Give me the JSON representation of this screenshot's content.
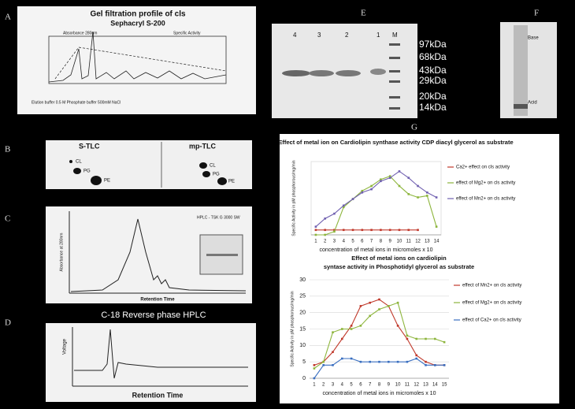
{
  "panels": {
    "A": {
      "label": "A",
      "title": "Gel filtration profile of cls",
      "subtitle": "Sephacryl S-200",
      "y_label": "Absorbance 280nm",
      "y2_label": "Specific Activity",
      "note": "Elution buffer 0.5 M Phosphate buffer 500mM NaCl"
    },
    "B": {
      "label": "B",
      "left": "S-TLC",
      "right": "mp-TLC",
      "spots": [
        "CL",
        "PG",
        "PE"
      ]
    },
    "C": {
      "label": "C",
      "x_label": "Retention Time",
      "y_label": "Absorbance at 280nm",
      "note": "HPLC - TSK G 3000 SW"
    },
    "D": {
      "label": "D",
      "title": "C-18 Reverse phase HPLC",
      "x_label": "Retention Time",
      "y_label": "Voltage"
    },
    "E": {
      "label": "E",
      "lanes": [
        "4",
        "3",
        "2",
        "1",
        "M"
      ],
      "markers": [
        "97kDa",
        "68kDa",
        "43kDa",
        "29kDa",
        "20kDa",
        "14kDa"
      ]
    },
    "F": {
      "label": "F",
      "top": "Base",
      "bottom": "Acid"
    },
    "G": {
      "label": "G"
    }
  },
  "chart_data": [
    {
      "type": "line",
      "title": "Effect of metal ion on Cardiolipin synthase activity CDP diacyl glycerol as substrate",
      "x_label": "concentration of metal ions in micromoles x 10",
      "y_label": "Specific Activity in pM phosphorous/mg/min",
      "categories": [
        "1",
        "2",
        "3",
        "4",
        "5",
        "6",
        "7",
        "8",
        "9",
        "10",
        "11",
        "12",
        "13",
        "14"
      ],
      "ylim": [
        0,
        45
      ],
      "series": [
        {
          "name": "Ca2+ effect on cls activity",
          "color": "#c0392b",
          "values": [
            3,
            3,
            3,
            3,
            3,
            3,
            3,
            3,
            3,
            3,
            3,
            3,
            null,
            null
          ]
        },
        {
          "name": "effect of Mg2+ on cls activity",
          "color": "#8db53c",
          "values": [
            0,
            0,
            2,
            17,
            22,
            27,
            30,
            34,
            36,
            30,
            25,
            23,
            24,
            5
          ]
        },
        {
          "name": "effect of Mn2+ on cls activity",
          "color": "#7060b0",
          "values": [
            5,
            10,
            13,
            18,
            22,
            26,
            28,
            33,
            35,
            39,
            35,
            30,
            26,
            23
          ]
        }
      ]
    },
    {
      "type": "line",
      "title": "Effect of  metal ions on cardiolipin syntase activity in Phosphotidyl glycerol as substrate",
      "x_label": "concentration of metal ions in micromoles x 10",
      "y_label": "Specific Activity in pM phosphorous/mg/min",
      "categories": [
        "1",
        "2",
        "3",
        "4",
        "5",
        "6",
        "7",
        "8",
        "9",
        "10",
        "11",
        "12",
        "13",
        "14",
        "15"
      ],
      "ylim": [
        0,
        30
      ],
      "yticks": [
        0,
        5,
        10,
        15,
        20,
        25,
        30
      ],
      "grid": true,
      "series": [
        {
          "name": "effect of Mn2+ on cls activity",
          "color": "#c0392b",
          "values": [
            4,
            5,
            8,
            12,
            16,
            22,
            23,
            24,
            22,
            16,
            12,
            7,
            5,
            4,
            4
          ]
        },
        {
          "name": "effect of Mg2+ on cls activity",
          "color": "#8db53c",
          "values": [
            3,
            5,
            14,
            15,
            15,
            16,
            19,
            21,
            22,
            23,
            13,
            12,
            12,
            12,
            11
          ]
        },
        {
          "name": "effect of Ca2+ on cls activity",
          "color": "#3a6fc0",
          "values": [
            0,
            4,
            4,
            6,
            6,
            5,
            5,
            5,
            5,
            5,
            5,
            6,
            4,
            4,
            4
          ]
        }
      ]
    }
  ]
}
